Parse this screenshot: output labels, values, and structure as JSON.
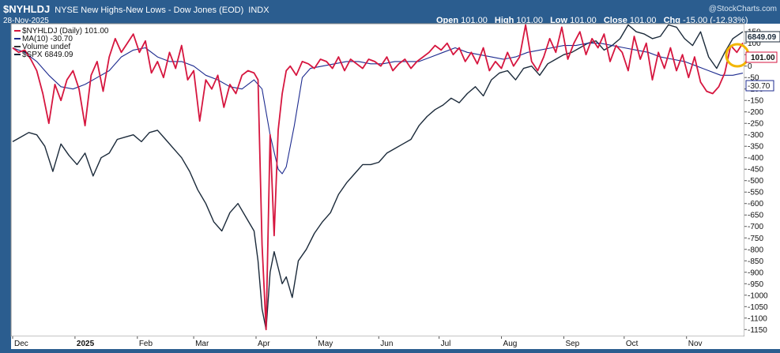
{
  "header": {
    "symbol": "$NYHLDJ",
    "description": "NYSE New Highs-New Lows - Dow Jones (EOD)",
    "exchange": "INDX",
    "date": "28-Nov-2025",
    "watermark": "@StockCharts.com",
    "ohlc": {
      "open_label": "Open",
      "open": "101.00",
      "high_label": "High",
      "high": "101.00",
      "low_label": "Low",
      "low": "101.00",
      "close_label": "Close",
      "close": "101.00",
      "chg_label": "Chg",
      "chg": "-15.00 (-12.93%)"
    }
  },
  "legend": [
    {
      "label": "$NYHLDJ (Daily) 101.00",
      "color": "#d6163f"
    },
    {
      "label": "MA(10) -30.70",
      "color": "#1d2b8f"
    },
    {
      "label": "Volume undef",
      "color": "#333333"
    },
    {
      "label": "$SPX 6849.09",
      "color": "#1b2a3a"
    }
  ],
  "price_badges": {
    "spx": "6849.09",
    "nyhl": "101.00",
    "ma": "-30.70"
  },
  "colors": {
    "nyhl": "#d6163f",
    "ma": "#1d2b8f",
    "spx": "#1b2a3a",
    "highlight": "#f2b600"
  },
  "chart_data": {
    "type": "line",
    "x_axis": {
      "labels": [
        "Dec",
        "2025",
        "Feb",
        "Mar",
        "Apr",
        "May",
        "Jun",
        "Jul",
        "Aug",
        "Sep",
        "Oct",
        "Nov"
      ],
      "label_positions_days": [
        0,
        31,
        62,
        90,
        121,
        151,
        182,
        212,
        243,
        274,
        304,
        335
      ],
      "range_days": [
        0,
        363
      ]
    },
    "y_axis": {
      "ticks": [
        "150",
        "100",
        "50",
        "0",
        "-50",
        "-100",
        "-150",
        "-200",
        "-250",
        "-300",
        "-350",
        "-400",
        "-450",
        "-500",
        "-550",
        "-600",
        "-650",
        "-700",
        "-750",
        "-800",
        "-850",
        "-900",
        "-950",
        "-1000",
        "-1050",
        "-1100",
        "-1150"
      ],
      "range": [
        -1180,
        185
      ]
    },
    "series": [
      {
        "name": "$NYHLDJ (Daily)",
        "key": "nyhl",
        "points": [
          [
            0,
            80
          ],
          [
            3,
            60
          ],
          [
            6,
            70
          ],
          [
            9,
            30
          ],
          [
            12,
            -20
          ],
          [
            15,
            -120
          ],
          [
            18,
            -250
          ],
          [
            21,
            -80
          ],
          [
            24,
            -150
          ],
          [
            27,
            -60
          ],
          [
            30,
            -20
          ],
          [
            33,
            -100
          ],
          [
            36,
            -260
          ],
          [
            39,
            -40
          ],
          [
            42,
            20
          ],
          [
            45,
            -110
          ],
          [
            48,
            40
          ],
          [
            51,
            120
          ],
          [
            54,
            60
          ],
          [
            57,
            100
          ],
          [
            60,
            140
          ],
          [
            63,
            60
          ],
          [
            66,
            110
          ],
          [
            69,
            -30
          ],
          [
            72,
            20
          ],
          [
            75,
            -50
          ],
          [
            78,
            60
          ],
          [
            81,
            -10
          ],
          [
            84,
            90
          ],
          [
            87,
            -60
          ],
          [
            90,
            -20
          ],
          [
            93,
            -240
          ],
          [
            96,
            -60
          ],
          [
            99,
            -100
          ],
          [
            102,
            -40
          ],
          [
            105,
            -180
          ],
          [
            108,
            -80
          ],
          [
            111,
            -120
          ],
          [
            114,
            -40
          ],
          [
            117,
            -20
          ],
          [
            120,
            -30
          ],
          [
            122,
            -60
          ],
          [
            124,
            -780
          ],
          [
            126,
            -1150
          ],
          [
            128,
            -300
          ],
          [
            130,
            -740
          ],
          [
            132,
            -280
          ],
          [
            134,
            -120
          ],
          [
            136,
            -20
          ],
          [
            138,
            0
          ],
          [
            141,
            -40
          ],
          [
            144,
            20
          ],
          [
            147,
            10
          ],
          [
            150,
            -10
          ],
          [
            153,
            30
          ],
          [
            156,
            20
          ],
          [
            159,
            -10
          ],
          [
            162,
            40
          ],
          [
            165,
            -20
          ],
          [
            168,
            30
          ],
          [
            171,
            10
          ],
          [
            174,
            -10
          ],
          [
            177,
            30
          ],
          [
            180,
            20
          ],
          [
            183,
            0
          ],
          [
            186,
            40
          ],
          [
            189,
            -20
          ],
          [
            192,
            10
          ],
          [
            195,
            30
          ],
          [
            198,
            -10
          ],
          [
            201,
            20
          ],
          [
            204,
            40
          ],
          [
            207,
            60
          ],
          [
            210,
            90
          ],
          [
            213,
            70
          ],
          [
            216,
            100
          ],
          [
            219,
            50
          ],
          [
            222,
            80
          ],
          [
            225,
            20
          ],
          [
            228,
            60
          ],
          [
            231,
            10
          ],
          [
            234,
            80
          ],
          [
            237,
            -20
          ],
          [
            240,
            20
          ],
          [
            243,
            -10
          ],
          [
            246,
            60
          ],
          [
            249,
            0
          ],
          [
            252,
            40
          ],
          [
            255,
            180
          ],
          [
            258,
            20
          ],
          [
            261,
            -20
          ],
          [
            264,
            40
          ],
          [
            267,
            120
          ],
          [
            270,
            60
          ],
          [
            273,
            170
          ],
          [
            276,
            30
          ],
          [
            279,
            100
          ],
          [
            282,
            150
          ],
          [
            285,
            50
          ],
          [
            288,
            120
          ],
          [
            291,
            80
          ],
          [
            294,
            140
          ],
          [
            297,
            20
          ],
          [
            300,
            90
          ],
          [
            303,
            60
          ],
          [
            306,
            -20
          ],
          [
            309,
            130
          ],
          [
            312,
            30
          ],
          [
            315,
            100
          ],
          [
            318,
            -60
          ],
          [
            321,
            60
          ],
          [
            324,
            -10
          ],
          [
            327,
            80
          ],
          [
            330,
            -20
          ],
          [
            333,
            50
          ],
          [
            336,
            -50
          ],
          [
            339,
            40
          ],
          [
            342,
            -70
          ],
          [
            345,
            -110
          ],
          [
            348,
            -120
          ],
          [
            351,
            -90
          ],
          [
            354,
            -30
          ],
          [
            357,
            90
          ],
          [
            360,
            60
          ],
          [
            363,
            101
          ]
        ]
      },
      {
        "name": "MA(10)",
        "key": "ma",
        "points": [
          [
            0,
            80
          ],
          [
            6,
            60
          ],
          [
            12,
            20
          ],
          [
            18,
            -40
          ],
          [
            24,
            -90
          ],
          [
            30,
            -100
          ],
          [
            36,
            -80
          ],
          [
            42,
            -50
          ],
          [
            48,
            -20
          ],
          [
            54,
            40
          ],
          [
            60,
            70
          ],
          [
            66,
            80
          ],
          [
            72,
            40
          ],
          [
            78,
            20
          ],
          [
            84,
            20
          ],
          [
            90,
            0
          ],
          [
            96,
            -40
          ],
          [
            102,
            -60
          ],
          [
            108,
            -90
          ],
          [
            114,
            -100
          ],
          [
            120,
            -60
          ],
          [
            124,
            -100
          ],
          [
            128,
            -300
          ],
          [
            132,
            -450
          ],
          [
            134,
            -470
          ],
          [
            136,
            -440
          ],
          [
            140,
            -260
          ],
          [
            144,
            -50
          ],
          [
            148,
            -10
          ],
          [
            154,
            0
          ],
          [
            160,
            10
          ],
          [
            166,
            20
          ],
          [
            172,
            20
          ],
          [
            178,
            10
          ],
          [
            184,
            10
          ],
          [
            190,
            20
          ],
          [
            196,
            20
          ],
          [
            202,
            20
          ],
          [
            208,
            40
          ],
          [
            214,
            60
          ],
          [
            220,
            80
          ],
          [
            226,
            60
          ],
          [
            232,
            50
          ],
          [
            238,
            40
          ],
          [
            244,
            30
          ],
          [
            250,
            40
          ],
          [
            256,
            60
          ],
          [
            262,
            70
          ],
          [
            268,
            80
          ],
          [
            274,
            90
          ],
          [
            280,
            90
          ],
          [
            286,
            100
          ],
          [
            292,
            100
          ],
          [
            298,
            90
          ],
          [
            304,
            80
          ],
          [
            310,
            70
          ],
          [
            316,
            60
          ],
          [
            322,
            40
          ],
          [
            328,
            30
          ],
          [
            334,
            20
          ],
          [
            340,
            0
          ],
          [
            346,
            -20
          ],
          [
            352,
            -40
          ],
          [
            358,
            -40
          ],
          [
            363,
            -30.7
          ]
        ]
      },
      {
        "name": "$SPX",
        "key": "spx",
        "points": [
          [
            0,
            -330
          ],
          [
            4,
            -310
          ],
          [
            8,
            -290
          ],
          [
            12,
            -300
          ],
          [
            16,
            -350
          ],
          [
            20,
            -460
          ],
          [
            24,
            -340
          ],
          [
            28,
            -390
          ],
          [
            32,
            -430
          ],
          [
            36,
            -380
          ],
          [
            40,
            -480
          ],
          [
            44,
            -400
          ],
          [
            48,
            -380
          ],
          [
            52,
            -320
          ],
          [
            56,
            -310
          ],
          [
            60,
            -300
          ],
          [
            64,
            -330
          ],
          [
            68,
            -290
          ],
          [
            72,
            -280
          ],
          [
            76,
            -320
          ],
          [
            80,
            -360
          ],
          [
            84,
            -400
          ],
          [
            88,
            -460
          ],
          [
            92,
            -540
          ],
          [
            96,
            -600
          ],
          [
            100,
            -680
          ],
          [
            104,
            -720
          ],
          [
            108,
            -640
          ],
          [
            112,
            -600
          ],
          [
            116,
            -660
          ],
          [
            120,
            -720
          ],
          [
            122,
            -850
          ],
          [
            124,
            -1060
          ],
          [
            126,
            -1150
          ],
          [
            128,
            -900
          ],
          [
            130,
            -810
          ],
          [
            132,
            -880
          ],
          [
            134,
            -950
          ],
          [
            136,
            -920
          ],
          [
            139,
            -1010
          ],
          [
            142,
            -850
          ],
          [
            146,
            -800
          ],
          [
            150,
            -730
          ],
          [
            154,
            -680
          ],
          [
            158,
            -640
          ],
          [
            162,
            -560
          ],
          [
            166,
            -510
          ],
          [
            170,
            -470
          ],
          [
            174,
            -430
          ],
          [
            178,
            -430
          ],
          [
            182,
            -420
          ],
          [
            186,
            -380
          ],
          [
            190,
            -360
          ],
          [
            194,
            -340
          ],
          [
            198,
            -320
          ],
          [
            202,
            -260
          ],
          [
            206,
            -220
          ],
          [
            210,
            -190
          ],
          [
            214,
            -170
          ],
          [
            218,
            -140
          ],
          [
            222,
            -160
          ],
          [
            226,
            -120
          ],
          [
            230,
            -90
          ],
          [
            234,
            -130
          ],
          [
            238,
            -60
          ],
          [
            242,
            -30
          ],
          [
            246,
            -20
          ],
          [
            250,
            -60
          ],
          [
            254,
            -10
          ],
          [
            258,
            0
          ],
          [
            262,
            -40
          ],
          [
            266,
            10
          ],
          [
            270,
            30
          ],
          [
            274,
            50
          ],
          [
            278,
            60
          ],
          [
            282,
            80
          ],
          [
            286,
            100
          ],
          [
            290,
            110
          ],
          [
            294,
            70
          ],
          [
            298,
            90
          ],
          [
            302,
            120
          ],
          [
            306,
            180
          ],
          [
            310,
            150
          ],
          [
            314,
            140
          ],
          [
            318,
            120
          ],
          [
            322,
            130
          ],
          [
            326,
            180
          ],
          [
            330,
            170
          ],
          [
            334,
            120
          ],
          [
            338,
            90
          ],
          [
            342,
            150
          ],
          [
            346,
            40
          ],
          [
            350,
            -10
          ],
          [
            354,
            60
          ],
          [
            358,
            120
          ],
          [
            363,
            150
          ]
        ]
      }
    ]
  }
}
